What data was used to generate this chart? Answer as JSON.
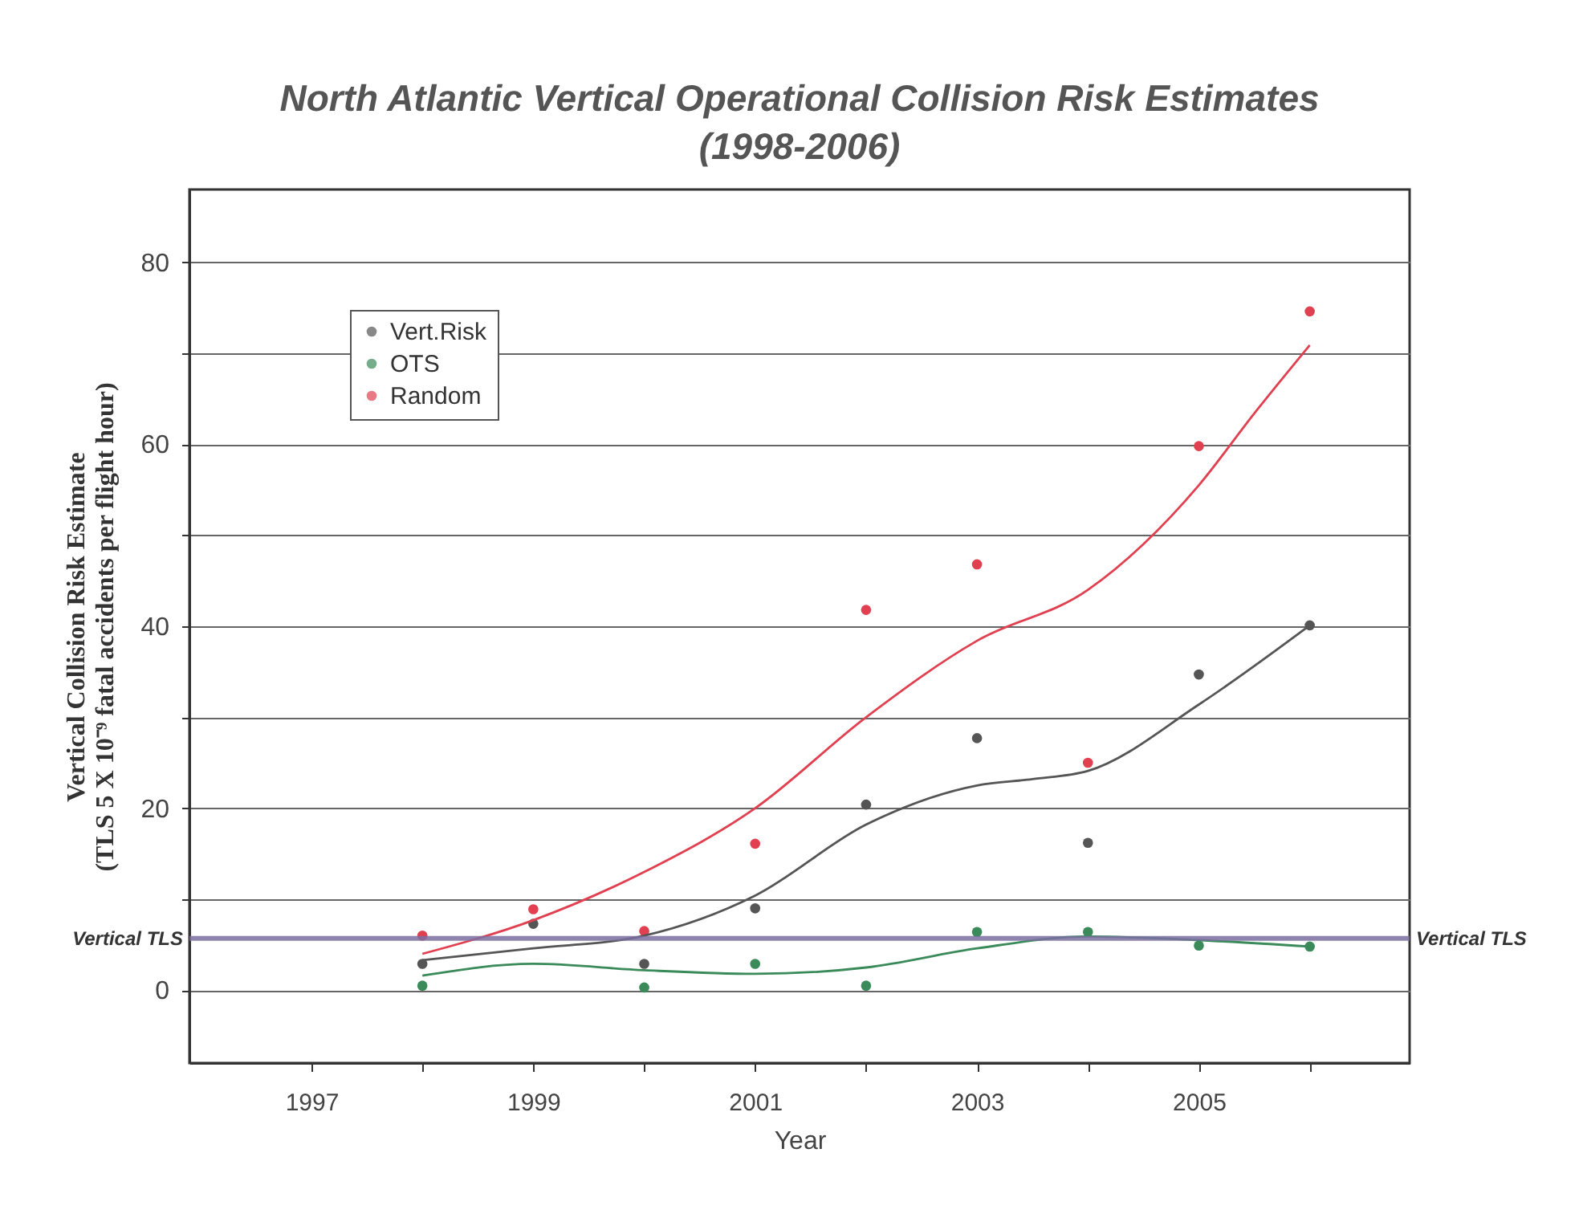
{
  "chart_data": {
    "type": "scatter",
    "title": "North Atlantic Vertical Operational Collision Risk Estimates (1998-2006)",
    "xlabel": "Year",
    "ylabel": "Vertical Collision Risk Estimate (TLS 5 X 10⁻⁹ fatal accidents per flight hour)",
    "x": [
      1998,
      1999,
      2000,
      2001,
      2002,
      2003,
      2004,
      2005,
      2006
    ],
    "series": [
      {
        "name": "Vert.Risk",
        "marker": "circle",
        "color": "#555555",
        "values": [
          2.9,
          7.3,
          2.9,
          9.0,
          20.4,
          27.7,
          16.2,
          34.7,
          40.1
        ]
      },
      {
        "name": "OTS",
        "marker": "circle",
        "color": "#3a8a5a",
        "values": [
          0.5,
          null,
          0.3,
          2.9,
          0.5,
          6.4,
          6.4,
          4.9,
          4.8
        ]
      },
      {
        "name": "Random",
        "marker": "circle",
        "color": "#e04050",
        "values": [
          6.0,
          8.9,
          6.5,
          16.1,
          41.8,
          46.8,
          25.0,
          59.8,
          74.6
        ]
      },
      {
        "type": "line",
        "marker": "none",
        "color": "#555555",
        "x": [
          1998,
          1999,
          2000,
          2001,
          2002,
          2003,
          2003.5,
          2004,
          2005,
          2006
        ],
        "values": [
          3.3,
          4.6,
          6.0,
          10.4,
          18.2,
          22.5,
          23.2,
          24.1,
          31.4,
          40.1
        ]
      },
      {
        "type": "line",
        "marker": "none",
        "color": "#3a8a5a",
        "x": [
          1998,
          1999,
          2000,
          2001,
          2002,
          2003,
          2004,
          2005,
          2006
        ],
        "values": [
          1.6,
          2.9,
          2.2,
          1.8,
          2.5,
          4.6,
          5.9,
          5.5,
          4.8
        ]
      },
      {
        "type": "line",
        "marker": "none",
        "color": "#e04050",
        "x": [
          1998,
          1999,
          2000,
          2001,
          2002,
          2003,
          2004,
          2005,
          2005.5,
          2006
        ],
        "values": [
          4.0,
          7.7,
          13.0,
          20.0,
          30.0,
          38.4,
          44.0,
          55.5,
          63.4,
          70.9
        ]
      }
    ],
    "xlim": [
      1995.9,
      2006.9
    ],
    "xticks": [
      1997,
      {
        "value": 1998,
        "label": null
      },
      1999,
      {
        "value": 2000,
        "label": null
      },
      2001,
      {
        "value": 2002,
        "label": null
      },
      2003,
      {
        "value": 2004,
        "label": null
      },
      2005,
      {
        "value": 2006,
        "label": null
      }
    ],
    "ylim": [
      -8,
      88
    ],
    "yticks": [
      0,
      {
        "value": 10,
        "label": null
      },
      20,
      {
        "value": 30,
        "label": null
      },
      40,
      {
        "value": 50,
        "label": null
      },
      60,
      {
        "value": 70,
        "label": null
      },
      80
    ],
    "ref_lines": [
      {
        "axis": "y",
        "value": 5.7,
        "label": "Vertical TLS",
        "color": "#7a6fa0"
      }
    ],
    "grid": "y",
    "legend": "top left"
  }
}
